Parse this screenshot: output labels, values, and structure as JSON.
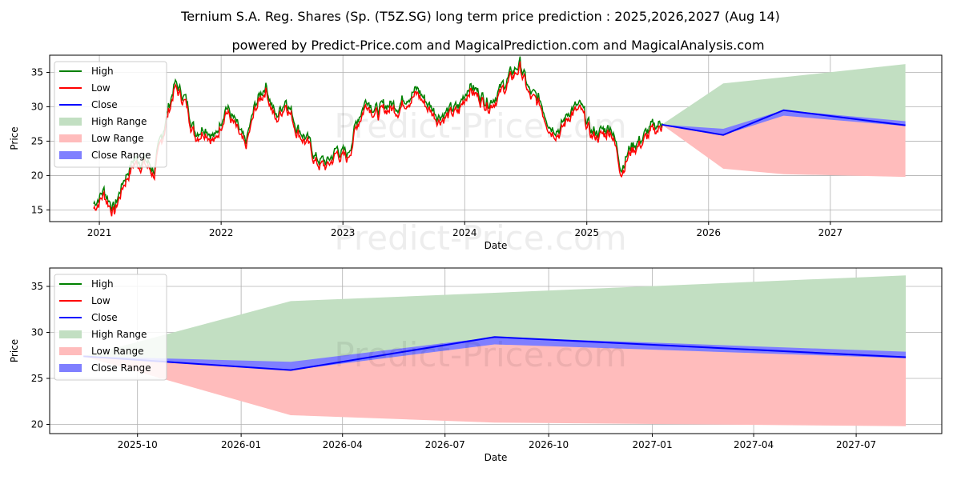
{
  "chart_data": [
    {
      "type": "line",
      "title": "Ternium S.A. Reg. Shares (Sp. (T5Z.SG) long term price prediction : 2025,2026,2027 (Aug 14)",
      "subtitle": "powered by Predict-Price.com and MagicalPrediction.com and MagicalAnalysis.com",
      "xlabel": "Date",
      "ylabel": "Price",
      "xticks": [
        "2021",
        "2022",
        "2023",
        "2024",
        "2025",
        "2026",
        "2027"
      ],
      "yticks": [
        15,
        20,
        25,
        30,
        35
      ],
      "ylim": [
        13.3,
        37.5
      ],
      "xlim": [
        "2020-08-05",
        "2027-12-01"
      ],
      "grid": true,
      "legend": [
        "High",
        "Low",
        "Close",
        "High Range",
        "Low Range",
        "Close Range"
      ],
      "legend_position": "top-left",
      "watermark": "Predict-Price.com",
      "history_monthly": {
        "dates": [
          "2020-12",
          "2021-01",
          "2021-02",
          "2021-03",
          "2021-04",
          "2021-05",
          "2021-06",
          "2021-07",
          "2021-08",
          "2021-09",
          "2021-10",
          "2021-11",
          "2021-12",
          "2022-01",
          "2022-02",
          "2022-03",
          "2022-04",
          "2022-05",
          "2022-06",
          "2022-07",
          "2022-08",
          "2022-09",
          "2022-10",
          "2022-11",
          "2022-12",
          "2023-01",
          "2023-02",
          "2023-03",
          "2023-04",
          "2023-05",
          "2023-06",
          "2023-07",
          "2023-08",
          "2023-09",
          "2023-10",
          "2023-11",
          "2023-12",
          "2024-01",
          "2024-02",
          "2024-03",
          "2024-04",
          "2024-05",
          "2024-06",
          "2024-07",
          "2024-08",
          "2024-09",
          "2024-10",
          "2024-11",
          "2024-12",
          "2025-01",
          "2025-02",
          "2025-03",
          "2025-04",
          "2025-05",
          "2025-06",
          "2025-07",
          "2025-08"
        ],
        "close": [
          15.5,
          17.5,
          14.8,
          19,
          22,
          22,
          20.5,
          27,
          33,
          31,
          26,
          27,
          25,
          30,
          27,
          24,
          30,
          33,
          28,
          31,
          27,
          25,
          22,
          21.5,
          23.5,
          22.5,
          28,
          31,
          29,
          30,
          30,
          31.5,
          32,
          30,
          28.5,
          29,
          29.5,
          33,
          31.5,
          30.5,
          32,
          34,
          36,
          31.5,
          30.5,
          27,
          26.5,
          29.5,
          29.5,
          26,
          26,
          27,
          21,
          24,
          25,
          26.5,
          27.4
        ]
      }
    },
    {
      "type": "area",
      "xlabel": "Date",
      "ylabel": "Price",
      "xticks": [
        "2025-10",
        "2026-01",
        "2026-04",
        "2026-07",
        "2026-10",
        "2027-01",
        "2027-04",
        "2027-07"
      ],
      "yticks": [
        20,
        25,
        30,
        35
      ],
      "ylim": [
        19,
        37
      ],
      "xlim": [
        "2025-07-15",
        "2027-09-15"
      ],
      "grid": true,
      "legend": [
        "High",
        "Low",
        "Close",
        "High Range",
        "Low Range",
        "Close Range"
      ],
      "legend_position": "top-left",
      "forecast": {
        "dates": [
          "2025-08-14",
          "2026-02-14",
          "2026-08-14",
          "2027-08-14"
        ],
        "close": [
          27.4,
          25.9,
          29.5,
          27.3
        ],
        "close_range_high": [
          27.4,
          26.8,
          29.5,
          27.9
        ],
        "close_range_low": [
          27.4,
          25.9,
          28.7,
          27.2
        ],
        "high_range": [
          27.4,
          33.4,
          34.3,
          36.2
        ],
        "low_range": [
          27.4,
          21.0,
          20.2,
          19.8
        ]
      }
    }
  ],
  "colors": {
    "high": "#008000",
    "low": "#ff0000",
    "close": "#0000ff",
    "high_range": "#c2dfc2",
    "low_range": "#ffbcbc",
    "close_range": "#7f7fff"
  }
}
